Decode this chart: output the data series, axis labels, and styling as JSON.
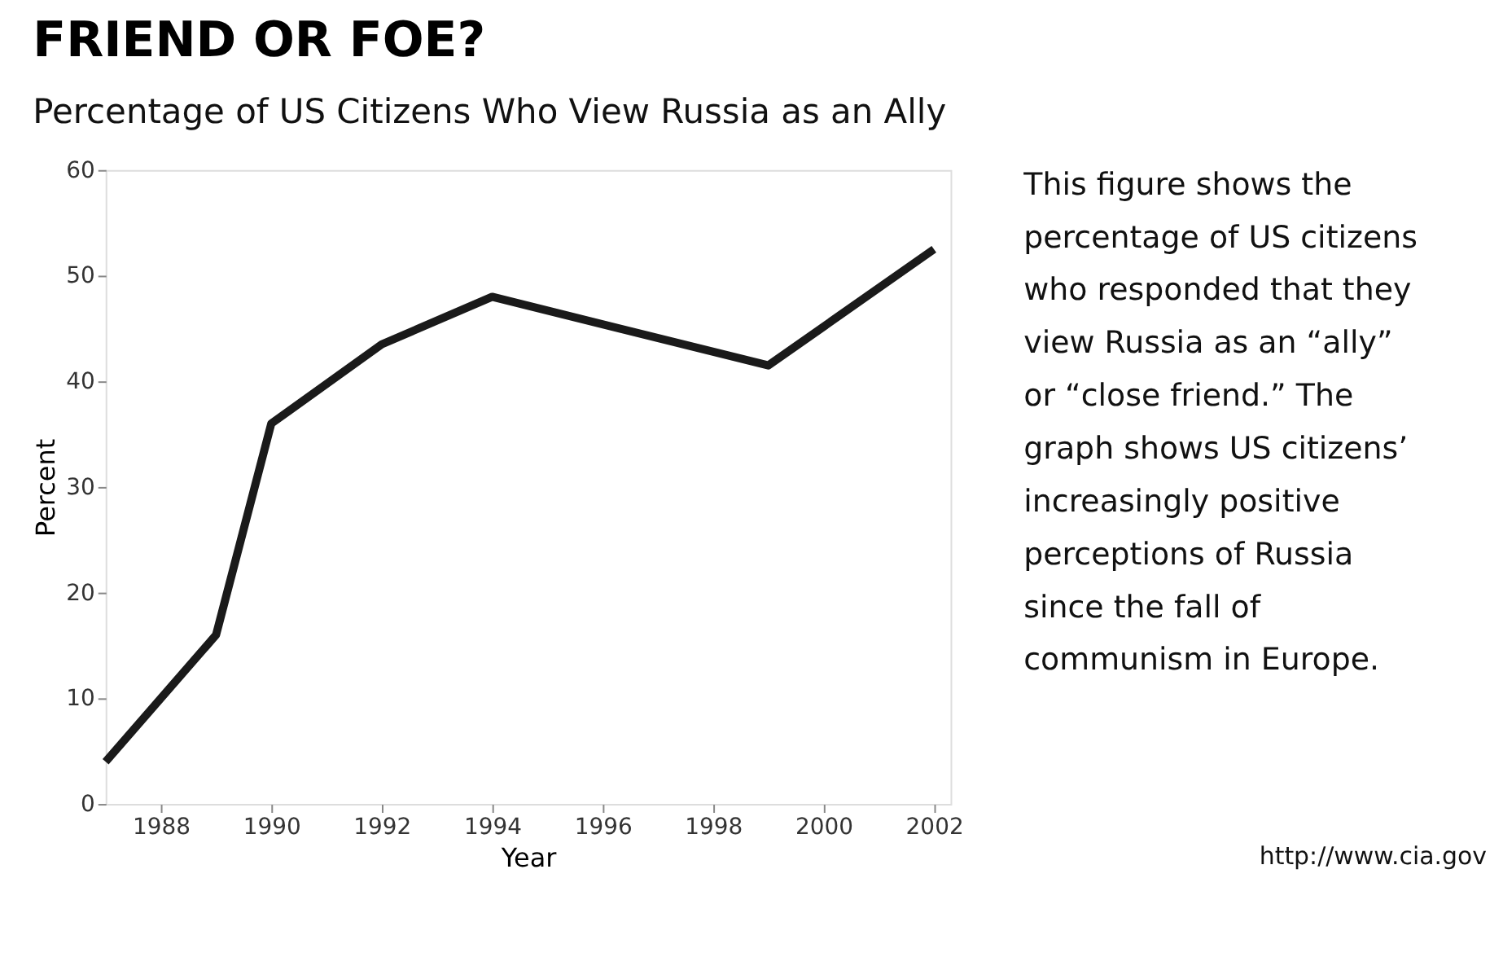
{
  "chart_data": {
    "type": "line",
    "title": "FRIEND OR FOE?",
    "subtitle": "Percentage of US Citizens Who View Russia as an Ally",
    "xlabel": "Year",
    "ylabel": "Percent",
    "x": [
      1987,
      1989,
      1990,
      1992,
      1994,
      1999,
      2002
    ],
    "series": [
      {
        "color": "#1a1a1a",
        "values": [
          4,
          16,
          36,
          43.5,
          48,
          41.5,
          52.5
        ]
      }
    ],
    "xlim": [
      1987,
      2002.3
    ],
    "xticks": [
      1988,
      1990,
      1992,
      1994,
      1996,
      1998,
      2000,
      2002
    ],
    "ylim": [
      0,
      60
    ],
    "yticks": [
      0,
      10,
      20,
      30,
      40,
      50,
      60
    ],
    "grid": false,
    "marker": "none",
    "line_style": "solid",
    "annotations": [
      "This figure shows the percentage of US citizens who responded that they view Russia as an “ally” or “close friend.” The graph shows US citizens’ increasingly positive perceptions of Russia since the fall of communism in Europe.",
      "http://www.cia.gov"
    ]
  }
}
